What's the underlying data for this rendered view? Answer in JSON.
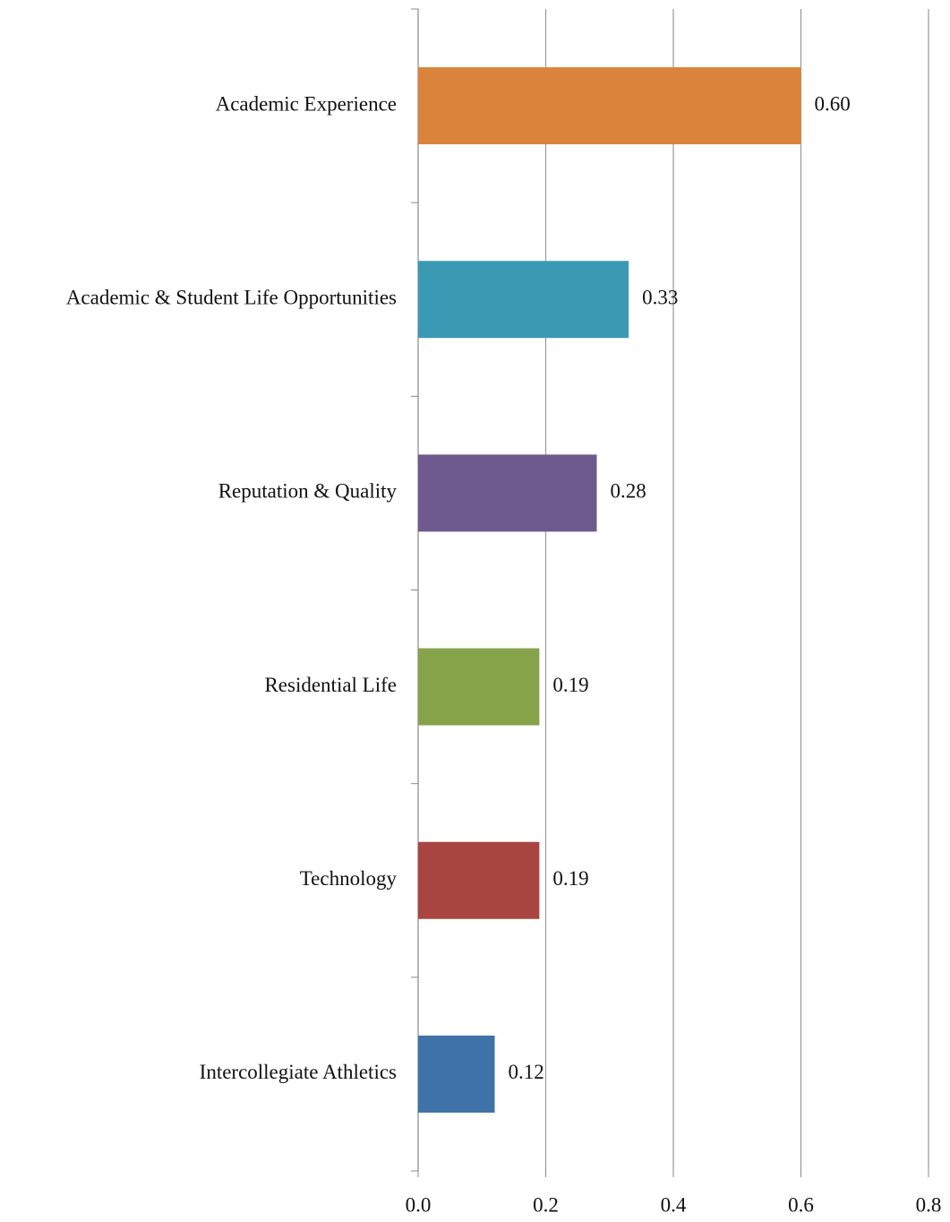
{
  "chart_data": {
    "type": "bar",
    "orientation": "horizontal",
    "categories": [
      "Academic Experience",
      "Academic & Student Life Opportunities",
      "Reputation & Quality",
      "Residential Life",
      "Technology",
      "Intercollegiate Athletics"
    ],
    "values": [
      0.6,
      0.33,
      0.28,
      0.19,
      0.19,
      0.12
    ],
    "value_labels": [
      "0.60",
      "0.33",
      "0.28",
      "0.19",
      "0.19",
      "0.12"
    ],
    "colors": [
      "#d9843a",
      "#3a9ab4",
      "#6e5a8e",
      "#86a34a",
      "#a84540",
      "#3e72a8"
    ],
    "xlim": [
      0,
      0.8
    ],
    "xticks": [
      {
        "value": 0,
        "label": "0.0"
      },
      0.2,
      0.4,
      0.6,
      0.8
    ],
    "grid": true
  }
}
